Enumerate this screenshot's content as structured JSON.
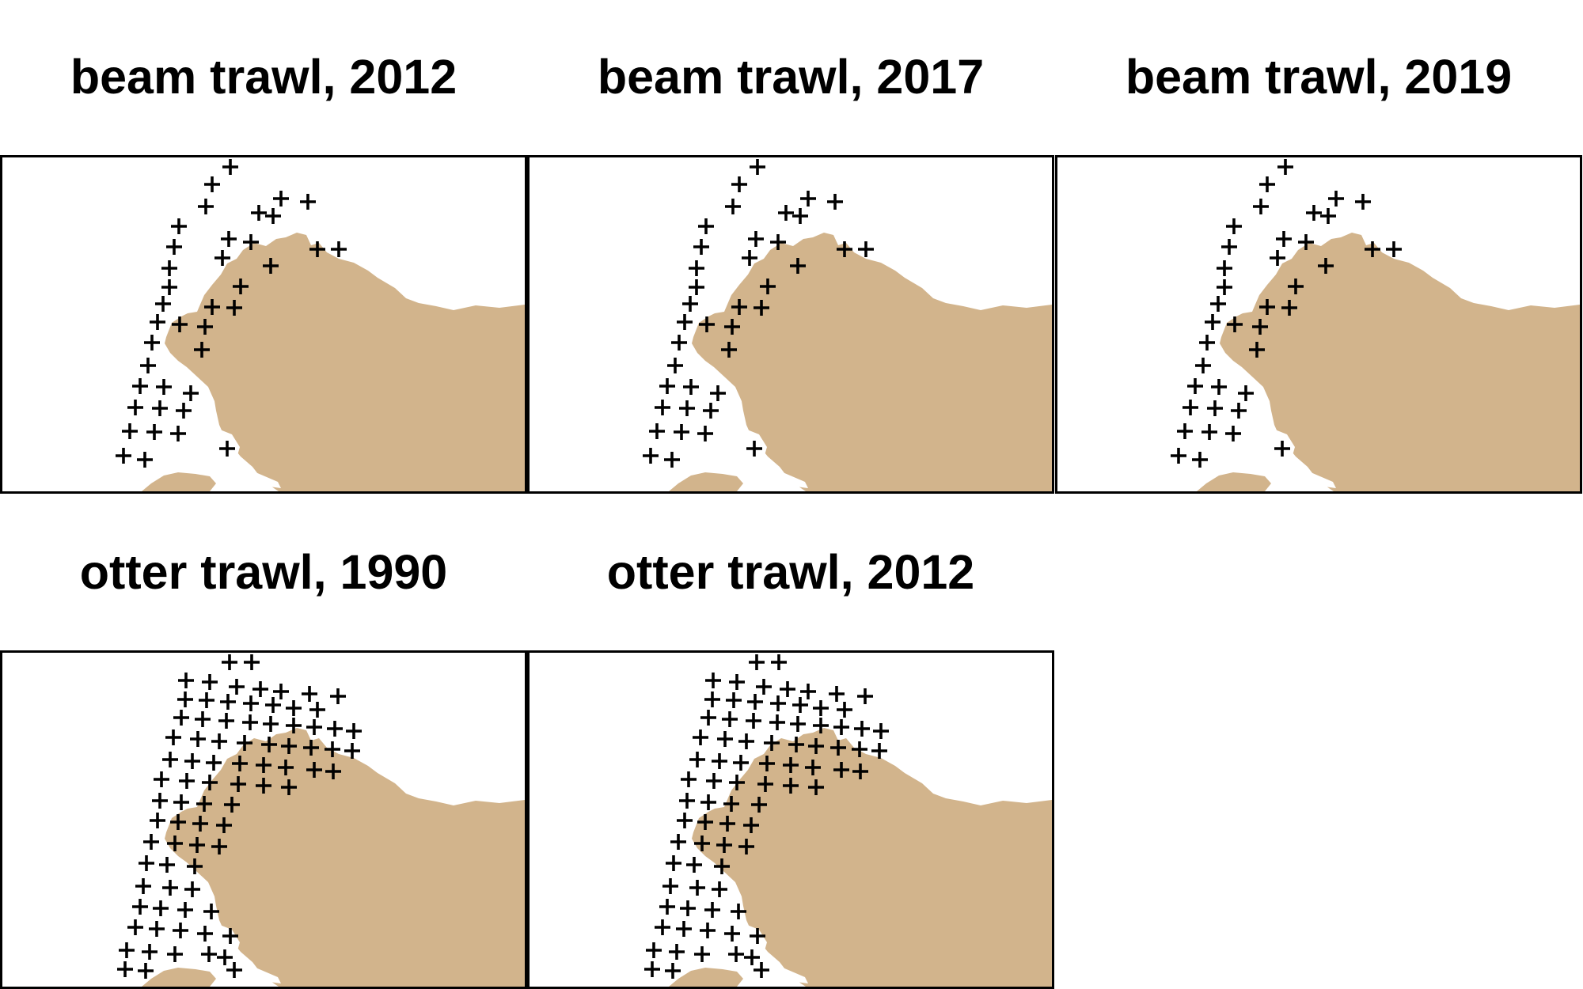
{
  "panels": [
    {
      "id": "beam-2012",
      "title": "beam trawl, 2012",
      "gear": "beam trawl",
      "year": 2012,
      "stations": 37
    },
    {
      "id": "beam-2017",
      "title": "beam trawl, 2017",
      "gear": "beam trawl",
      "year": 2017,
      "stations": 37
    },
    {
      "id": "beam-2019",
      "title": "beam trawl, 2019",
      "gear": "beam trawl",
      "year": 2019,
      "stations": 37
    },
    {
      "id": "otter-1990",
      "title": "otter trawl, 1990",
      "gear": "otter trawl",
      "year": 1990,
      "stations": 101
    },
    {
      "id": "otter-2012",
      "title": "otter trawl, 2012",
      "gear": "otter trawl",
      "year": 2012,
      "stations": 101
    }
  ],
  "colors": {
    "land": "#D2B48C",
    "sea": "#FFFFFF",
    "frame": "#000000",
    "station_marker": "#000000"
  },
  "marker_icon": "plus-icon"
}
